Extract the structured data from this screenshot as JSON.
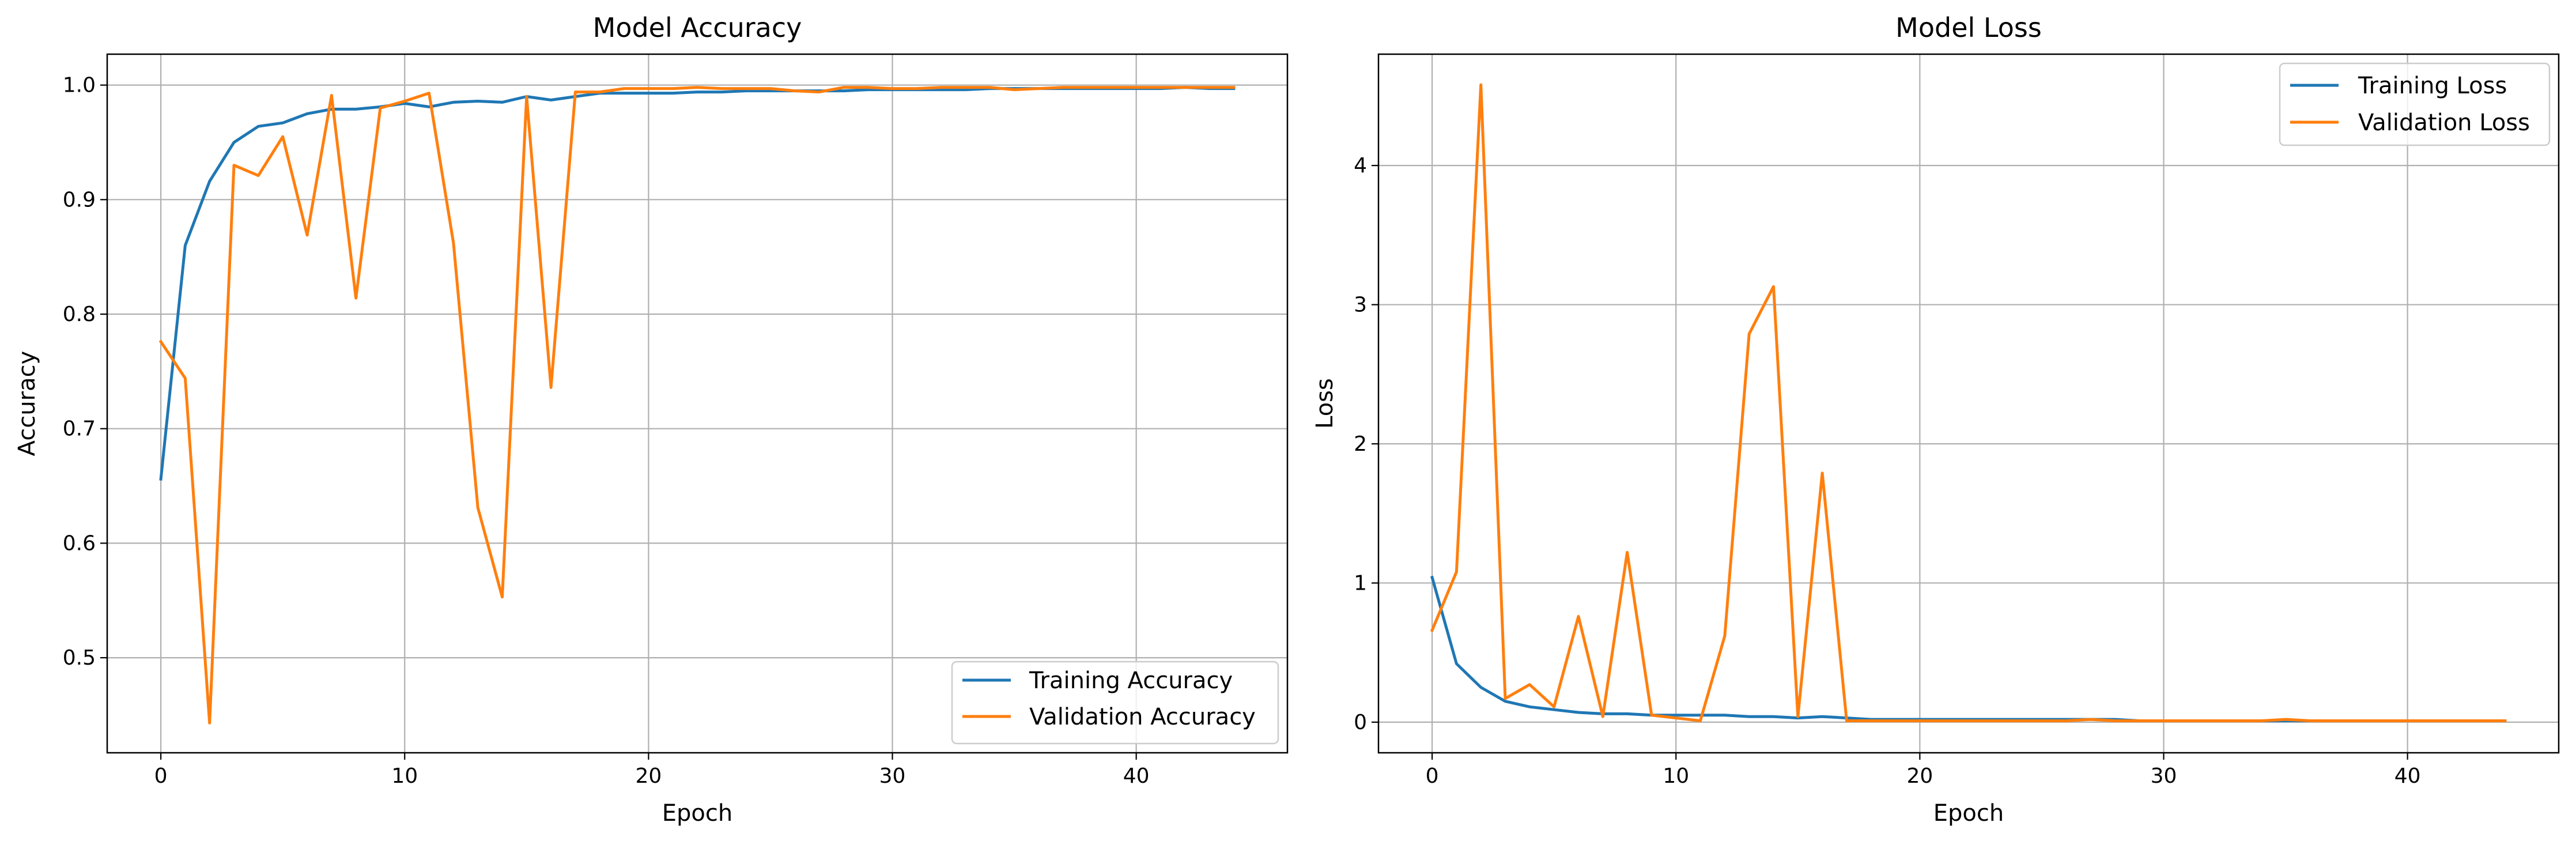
{
  "figure": {
    "chart_count": 2
  },
  "chart_data": [
    {
      "type": "line",
      "title": "Model Accuracy",
      "xlabel": "Epoch",
      "ylabel": "Accuracy",
      "xlim": [
        -2.2,
        46.2
      ],
      "ylim": [
        0.417,
        1.027
      ],
      "xticks": [
        0,
        10,
        20,
        30,
        40
      ],
      "yticks": [
        0.5,
        0.6,
        0.7,
        0.8,
        0.9,
        1.0
      ],
      "xtick_labels": [
        "0",
        "10",
        "20",
        "30",
        "40"
      ],
      "ytick_labels": [
        "0.5",
        "0.6",
        "0.7",
        "0.8",
        "0.9",
        "1.0"
      ],
      "grid": true,
      "legend_position": "lower-right",
      "series": [
        {
          "name": "Training Accuracy",
          "color": "#1f77b4",
          "x": [
            0,
            1,
            2,
            3,
            4,
            5,
            6,
            7,
            8,
            9,
            10,
            11,
            12,
            13,
            14,
            15,
            16,
            17,
            18,
            19,
            20,
            21,
            22,
            23,
            24,
            25,
            26,
            27,
            28,
            29,
            30,
            31,
            32,
            33,
            34,
            35,
            36,
            37,
            38,
            39,
            40,
            41,
            42,
            43,
            44
          ],
          "values": [
            0.656,
            0.86,
            0.916,
            0.95,
            0.964,
            0.967,
            0.975,
            0.979,
            0.979,
            0.981,
            0.984,
            0.981,
            0.985,
            0.986,
            0.985,
            0.99,
            0.987,
            0.99,
            0.993,
            0.993,
            0.993,
            0.993,
            0.994,
            0.994,
            0.995,
            0.995,
            0.995,
            0.995,
            0.995,
            0.996,
            0.996,
            0.996,
            0.996,
            0.996,
            0.997,
            0.997,
            0.997,
            0.997,
            0.997,
            0.997,
            0.997,
            0.997,
            0.998,
            0.997,
            0.997
          ]
        },
        {
          "name": "Validation Accuracy",
          "color": "#ff7f0e",
          "x": [
            0,
            1,
            2,
            3,
            4,
            5,
            6,
            7,
            8,
            9,
            10,
            11,
            12,
            13,
            14,
            15,
            16,
            17,
            18,
            19,
            20,
            21,
            22,
            23,
            24,
            25,
            26,
            27,
            28,
            29,
            30,
            31,
            32,
            33,
            34,
            35,
            36,
            37,
            38,
            39,
            40,
            41,
            42,
            43,
            44
          ],
          "values": [
            0.776,
            0.744,
            0.443,
            0.93,
            0.921,
            0.955,
            0.869,
            0.991,
            0.814,
            0.98,
            0.986,
            0.993,
            0.862,
            0.631,
            0.553,
            0.99,
            0.736,
            0.994,
            0.994,
            0.997,
            0.997,
            0.997,
            0.998,
            0.997,
            0.997,
            0.997,
            0.995,
            0.994,
            0.998,
            0.998,
            0.997,
            0.997,
            0.998,
            0.998,
            0.998,
            0.996,
            0.997,
            0.998,
            0.998,
            0.998,
            0.998,
            0.998,
            0.998,
            0.998,
            0.998
          ]
        }
      ]
    },
    {
      "type": "line",
      "title": "Model Loss",
      "xlabel": "Epoch",
      "ylabel": "Loss",
      "xlim": [
        -2.2,
        46.2
      ],
      "ylim": [
        -0.22,
        4.8
      ],
      "xticks": [
        0,
        10,
        20,
        30,
        40
      ],
      "yticks": [
        0,
        1,
        2,
        3,
        4
      ],
      "xtick_labels": [
        "0",
        "10",
        "20",
        "30",
        "40"
      ],
      "ytick_labels": [
        "0",
        "1",
        "2",
        "3",
        "4"
      ],
      "grid": true,
      "legend_position": "upper-right",
      "series": [
        {
          "name": "Training Loss",
          "color": "#1f77b4",
          "x": [
            0,
            1,
            2,
            3,
            4,
            5,
            6,
            7,
            8,
            9,
            10,
            11,
            12,
            13,
            14,
            15,
            16,
            17,
            18,
            19,
            20,
            21,
            22,
            23,
            24,
            25,
            26,
            27,
            28,
            29,
            30,
            31,
            32,
            33,
            34,
            35,
            36,
            37,
            38,
            39,
            40,
            41,
            42,
            43,
            44
          ],
          "values": [
            1.04,
            0.42,
            0.25,
            0.15,
            0.11,
            0.09,
            0.07,
            0.06,
            0.06,
            0.05,
            0.05,
            0.05,
            0.05,
            0.04,
            0.04,
            0.03,
            0.04,
            0.03,
            0.02,
            0.02,
            0.02,
            0.02,
            0.02,
            0.02,
            0.02,
            0.02,
            0.02,
            0.02,
            0.02,
            0.01,
            0.01,
            0.01,
            0.01,
            0.01,
            0.01,
            0.01,
            0.01,
            0.01,
            0.01,
            0.01,
            0.01,
            0.01,
            0.01,
            0.01,
            0.01
          ]
        },
        {
          "name": "Validation Loss",
          "color": "#ff7f0e",
          "x": [
            0,
            1,
            2,
            3,
            4,
            5,
            6,
            7,
            8,
            9,
            10,
            11,
            12,
            13,
            14,
            15,
            16,
            17,
            18,
            19,
            20,
            21,
            22,
            23,
            24,
            25,
            26,
            27,
            28,
            29,
            30,
            31,
            32,
            33,
            34,
            35,
            36,
            37,
            38,
            39,
            40,
            41,
            42,
            43,
            44
          ],
          "values": [
            0.66,
            1.08,
            4.58,
            0.17,
            0.27,
            0.11,
            0.76,
            0.04,
            1.22,
            0.05,
            0.03,
            0.01,
            0.62,
            2.79,
            3.13,
            0.04,
            1.79,
            0.01,
            0.01,
            0.01,
            0.01,
            0.01,
            0.01,
            0.01,
            0.01,
            0.01,
            0.01,
            0.02,
            0.01,
            0.01,
            0.01,
            0.01,
            0.01,
            0.01,
            0.01,
            0.02,
            0.01,
            0.01,
            0.01,
            0.01,
            0.01,
            0.01,
            0.01,
            0.01,
            0.01
          ]
        }
      ]
    }
  ]
}
